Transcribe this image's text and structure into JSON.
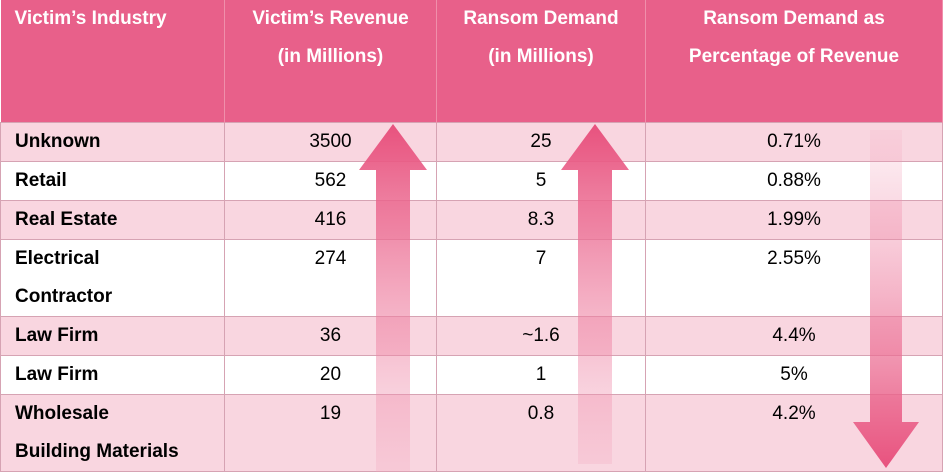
{
  "table": {
    "headers": [
      {
        "line1": "Victim’s Industry",
        "line2": ""
      },
      {
        "line1": "Victim’s Revenue",
        "line2": "(in Millions)"
      },
      {
        "line1": "Ransom Demand",
        "line2": "(in Millions)"
      },
      {
        "line1": "Ransom Demand as",
        "line2": "Percentage of Revenue"
      }
    ],
    "rows": [
      {
        "industry": "Unknown",
        "industry2": "",
        "revenue": "3500",
        "demand": "25",
        "percent": "0.71%"
      },
      {
        "industry": "Retail",
        "industry2": "",
        "revenue": "562",
        "demand": "5",
        "percent": "0.88%"
      },
      {
        "industry": "Real Estate",
        "industry2": "",
        "revenue": "416",
        "demand": "8.3",
        "percent": "1.99%"
      },
      {
        "industry": "Electrical",
        "industry2": "Contractor",
        "revenue": "274",
        "demand": "7",
        "percent": "2.55%"
      },
      {
        "industry": "Law Firm",
        "industry2": "",
        "revenue": "36",
        "demand": "~1.6",
        "percent": "4.4%"
      },
      {
        "industry": "Law Firm",
        "industry2": "",
        "revenue": "20",
        "demand": "1",
        "percent": "5%"
      },
      {
        "industry": "Wholesale",
        "industry2": "Building Materials",
        "revenue": "19",
        "demand": "0.8",
        "percent": "4.2%"
      }
    ]
  },
  "arrows": [
    {
      "name": "revenue-trend-arrow",
      "direction": "up"
    },
    {
      "name": "demand-trend-arrow",
      "direction": "up"
    },
    {
      "name": "percent-trend-arrow",
      "direction": "down"
    }
  ],
  "colors": {
    "header": "#e8608a",
    "row_alt": "#f9d6e0",
    "arrow": "#e8527e"
  }
}
